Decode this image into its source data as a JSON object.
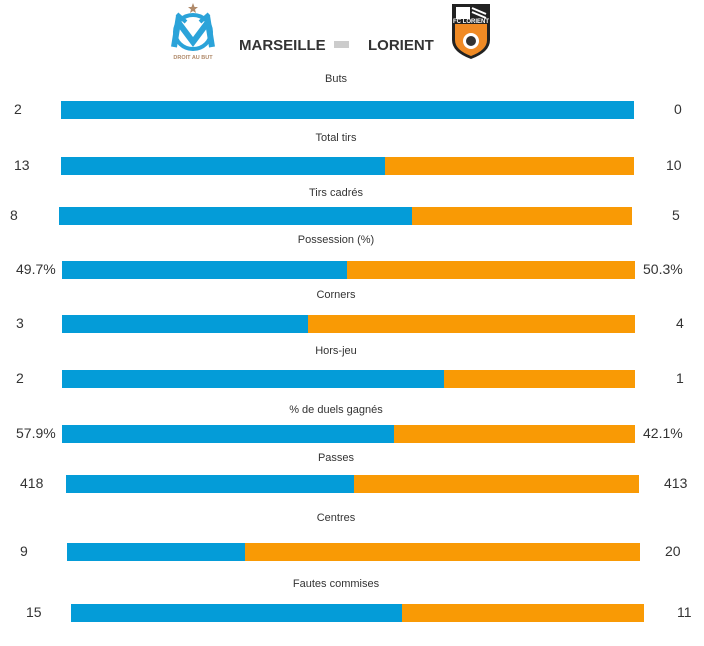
{
  "header": {
    "home_team": "MARSEILLE",
    "away_team": "LORIENT",
    "home_logo_text": "DROIT AU BUT",
    "away_logo_text": "FC LORIENT"
  },
  "colors": {
    "home": "#049cd8",
    "away": "#f99a05"
  },
  "stats": [
    {
      "label": "Buts",
      "home": "2",
      "away": "0",
      "home_value": 2,
      "away_value": 0
    },
    {
      "label": "Total tirs",
      "home": "13",
      "away": "10",
      "home_value": 13,
      "away_value": 10
    },
    {
      "label": "Tirs cadrés",
      "home": "8",
      "away": "5",
      "home_value": 8,
      "away_value": 5
    },
    {
      "label": "Possession (%)",
      "home": "49.7%",
      "away": "50.3%",
      "home_value": 49.7,
      "away_value": 50.3
    },
    {
      "label": "Corners",
      "home": "3",
      "away": "4",
      "home_value": 3,
      "away_value": 4
    },
    {
      "label": "Hors-jeu",
      "home": "2",
      "away": "1",
      "home_value": 2,
      "away_value": 1
    },
    {
      "label": "% de duels gagnés",
      "home": "57.9%",
      "away": "42.1%",
      "home_value": 57.9,
      "away_value": 42.1
    },
    {
      "label": "Passes",
      "home": "418",
      "away": "413",
      "home_value": 418,
      "away_value": 413
    },
    {
      "label": "Centres",
      "home": "9",
      "away": "20",
      "home_value": 9,
      "away_value": 20
    },
    {
      "label": "Fautes commises",
      "home": "15",
      "away": "11",
      "home_value": 15,
      "away_value": 11
    }
  ]
}
